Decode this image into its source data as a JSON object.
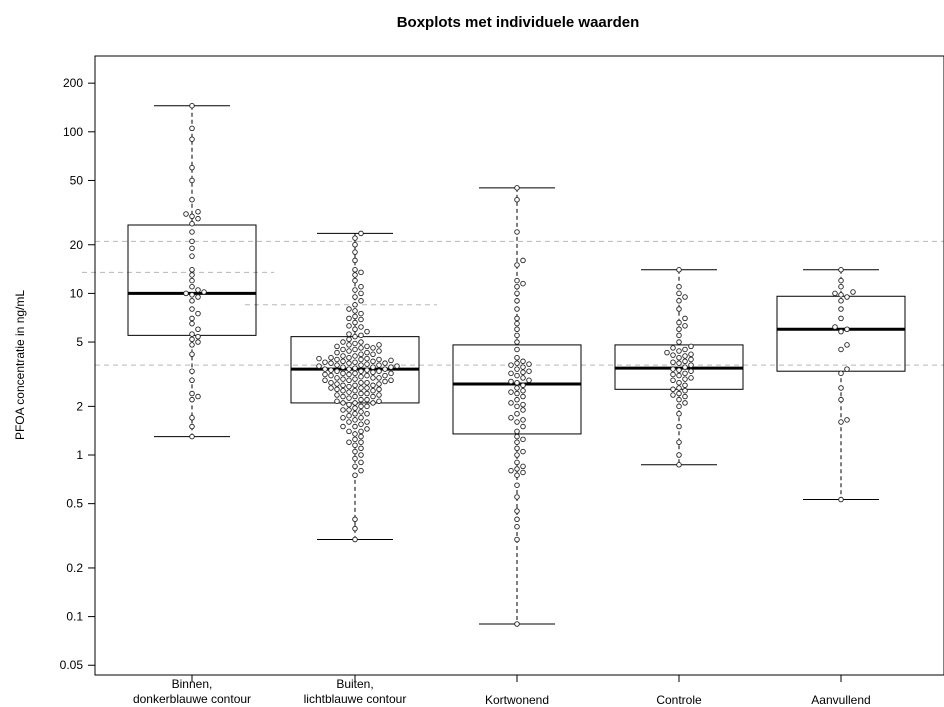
{
  "chart_data": {
    "type": "boxplot",
    "title": "Boxplots met individuele waarden",
    "xlabel": "",
    "ylabel": "PFOA concentratie in ng/mL",
    "yscale": "log",
    "ylim": [
      0.045,
      270
    ],
    "yticks": [
      0.05,
      0.1,
      0.2,
      0.5,
      1,
      2,
      5,
      10,
      20,
      50,
      100,
      200
    ],
    "ytick_labels": [
      "0.05",
      "0.1",
      "0.2",
      "0.5",
      "1",
      "2",
      "5",
      "10",
      "20",
      "50",
      "100",
      "200"
    ],
    "categories": [
      [
        "Binnen,",
        "donkerblauwe contour"
      ],
      [
        "Buiten,",
        "lichtblauwe contour"
      ],
      [
        "Kortwonend"
      ],
      [
        "Controle"
      ],
      [
        "Aanvullend"
      ]
    ],
    "reference_lines": [
      {
        "value": 21,
        "span": "full"
      },
      {
        "value": 3.6,
        "span": "full"
      },
      {
        "value": 13.5,
        "span": "group",
        "group": 0
      },
      {
        "value": 8.5,
        "span": "group",
        "group": 1
      }
    ],
    "boxes": [
      {
        "whisker_low": 1.3,
        "q1": 5.5,
        "median": 10,
        "q3": 26.5,
        "whisker_high": 145
      },
      {
        "whisker_low": 0.3,
        "q1": 2.1,
        "median": 3.4,
        "q3": 5.4,
        "whisker_high": 23.5
      },
      {
        "whisker_low": 0.09,
        "q1": 1.35,
        "median": 2.75,
        "q3": 4.8,
        "whisker_high": 45
      },
      {
        "whisker_low": 0.87,
        "q1": 2.55,
        "median": 3.45,
        "q3": 4.8,
        "whisker_high": 14
      },
      {
        "whisker_low": 0.53,
        "q1": 3.3,
        "median": 6.0,
        "q3": 9.6,
        "whisker_high": 14
      }
    ],
    "points": [
      [
        1.3,
        1.5,
        1.7,
        2.2,
        2.3,
        2.4,
        2.9,
        3.3,
        4.2,
        4.8,
        5.0,
        5.2,
        5.4,
        5.6,
        6.0,
        6.5,
        7.0,
        7.5,
        8.0,
        9.0,
        9.5,
        9.8,
        10.0,
        10.2,
        10.5,
        11.0,
        12.0,
        13.0,
        14.0,
        17.0,
        19.0,
        21.0,
        24.0,
        27.0,
        29.0,
        30.0,
        31.0,
        32.0,
        38.0,
        50.0,
        60.0,
        90.0,
        105.0,
        145.0
      ],
      [
        0.3,
        0.35,
        0.4,
        0.75,
        0.8,
        0.85,
        0.9,
        0.95,
        1.0,
        1.05,
        1.1,
        1.15,
        1.2,
        1.25,
        1.3,
        1.35,
        1.4,
        1.45,
        1.5,
        1.55,
        1.6,
        1.65,
        1.7,
        1.75,
        1.8,
        1.85,
        1.9,
        1.95,
        2.0,
        2.05,
        2.1,
        2.15,
        2.2,
        2.25,
        2.3,
        2.35,
        2.4,
        2.45,
        2.5,
        2.55,
        2.6,
        2.65,
        2.7,
        2.75,
        2.8,
        2.85,
        2.9,
        2.95,
        3.0,
        3.05,
        3.1,
        3.15,
        3.2,
        3.25,
        3.3,
        3.35,
        3.4,
        3.45,
        3.5,
        3.55,
        3.6,
        3.65,
        3.7,
        3.75,
        3.8,
        3.85,
        3.9,
        3.95,
        4.0,
        4.1,
        4.2,
        4.3,
        4.4,
        4.5,
        4.6,
        4.7,
        4.8,
        4.9,
        5.0,
        5.2,
        5.4,
        5.6,
        5.8,
        6.0,
        6.3,
        6.6,
        6.9,
        7.2,
        7.5,
        7.8,
        8.0,
        8.5,
        9.0,
        9.5,
        10.0,
        10.5,
        11.0,
        12.0,
        13.0,
        13.5,
        14.0,
        16.0,
        18.0,
        20.0,
        22.0,
        23.5,
        1.2,
        1.4,
        1.6,
        1.8,
        2.0,
        2.2,
        2.4,
        2.6,
        2.8,
        3.0,
        3.2,
        3.4,
        3.6,
        3.8,
        4.0,
        4.2,
        4.4,
        4.6,
        4.8,
        5.0,
        2.1,
        2.3,
        2.5,
        2.7,
        2.9,
        3.1,
        3.3,
        3.5,
        3.7,
        3.9,
        2.15,
        2.35,
        2.55,
        2.75,
        2.95,
        3.15,
        3.35,
        3.55,
        3.75,
        3.95,
        1.9,
        2.1,
        2.3,
        2.5,
        2.7,
        2.9,
        3.1,
        3.3,
        3.5,
        3.7,
        3.9,
        4.1,
        4.3,
        4.5,
        4.7,
        5.5,
        6.2,
        7.0,
        1.5,
        1.7,
        2.6,
        2.8,
        3.0,
        3.2,
        3.4,
        3.6
      ],
      [
        0.09,
        0.3,
        0.36,
        0.4,
        0.45,
        0.55,
        0.65,
        0.75,
        0.8,
        0.82,
        0.85,
        0.9,
        1.0,
        1.1,
        1.2,
        1.3,
        1.4,
        1.5,
        1.6,
        1.7,
        1.8,
        1.9,
        2.0,
        2.1,
        2.2,
        2.3,
        2.4,
        2.5,
        2.6,
        2.7,
        2.8,
        2.9,
        3.0,
        3.1,
        3.2,
        3.3,
        3.4,
        3.5,
        3.6,
        3.7,
        3.8,
        4.0,
        4.5,
        5.0,
        5.5,
        6.0,
        6.5,
        7.0,
        8.0,
        9.0,
        10.0,
        11.0,
        11.5,
        12.0,
        15.0,
        16.0,
        24.0,
        38.0,
        45.0,
        1.25,
        1.65,
        2.05,
        2.45,
        2.85,
        3.25,
        3.65,
        0.78,
        1.05
      ],
      [
        0.87,
        1.0,
        1.2,
        1.5,
        1.8,
        2.0,
        2.1,
        2.2,
        2.3,
        2.4,
        2.5,
        2.6,
        2.7,
        2.8,
        2.9,
        3.0,
        3.1,
        3.2,
        3.3,
        3.4,
        3.5,
        3.6,
        3.7,
        3.8,
        3.9,
        4.0,
        4.1,
        4.2,
        4.3,
        4.4,
        4.5,
        4.6,
        4.7,
        5.0,
        5.5,
        6.0,
        6.3,
        6.6,
        7.0,
        8.0,
        9.0,
        9.5,
        10.0,
        11.0,
        14.0,
        2.55,
        2.95,
        3.35,
        3.75,
        4.15,
        2.35,
        3.15
      ],
      [
        0.53,
        1.6,
        1.65,
        2.2,
        2.6,
        3.2,
        3.4,
        4.5,
        4.8,
        5.8,
        6.0,
        6.2,
        7.0,
        8.0,
        9.0,
        9.5,
        9.8,
        10.0,
        10.2,
        11.0,
        12.0,
        14.0
      ]
    ]
  }
}
